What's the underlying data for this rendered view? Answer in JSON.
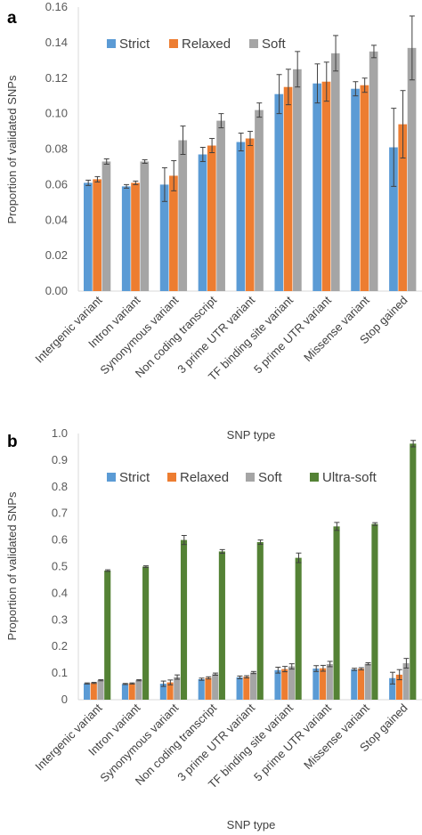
{
  "chart_data": [
    {
      "type": "bar",
      "panel_label": "a",
      "title": "",
      "xlabel": "SNP type",
      "ylabel": "Proportion of validated SNPs",
      "ylim": [
        0,
        0.16
      ],
      "yticks": [
        "0.00",
        "0.02",
        "0.04",
        "0.06",
        "0.08",
        "0.10",
        "0.12",
        "0.14",
        "0.16"
      ],
      "grid": false,
      "legend_position": "top-left",
      "categories": [
        "Intergenic variant",
        "Intron variant",
        "Synonymous variant",
        "Non coding transcript",
        "3 prime UTR variant",
        "TF binding site variant",
        "5 prime UTR variant",
        "Missense variant",
        "Stop gained"
      ],
      "series": [
        {
          "name": "Strict",
          "color": "#5b9bd5",
          "values": [
            0.061,
            0.059,
            0.06,
            0.077,
            0.084,
            0.111,
            0.117,
            0.114,
            0.081
          ],
          "errors": [
            0.0015,
            0.001,
            0.0095,
            0.004,
            0.005,
            0.011,
            0.011,
            0.004,
            0.022
          ]
        },
        {
          "name": "Relaxed",
          "color": "#ed7d31",
          "values": [
            0.063,
            0.061,
            0.065,
            0.082,
            0.086,
            0.115,
            0.118,
            0.116,
            0.094
          ],
          "errors": [
            0.0015,
            0.001,
            0.0085,
            0.004,
            0.004,
            0.01,
            0.011,
            0.004,
            0.019
          ]
        },
        {
          "name": "Soft",
          "color": "#a5a5a5",
          "values": [
            0.073,
            0.073,
            0.085,
            0.096,
            0.102,
            0.125,
            0.134,
            0.135,
            0.137
          ],
          "errors": [
            0.0015,
            0.001,
            0.008,
            0.004,
            0.004,
            0.01,
            0.01,
            0.0035,
            0.018
          ]
        }
      ]
    },
    {
      "type": "bar",
      "panel_label": "b",
      "title": "",
      "xlabel": "SNP type",
      "ylabel": "Proportion of validated SNPs",
      "ylim": [
        0,
        1.0
      ],
      "yticks": [
        "0",
        "0.1",
        "0.2",
        "0.3",
        "0.4",
        "0.5",
        "0.6",
        "0.7",
        "0.8",
        "0.9",
        "1.0"
      ],
      "grid": false,
      "legend_position": "top-left",
      "categories": [
        "Intergenic variant",
        "Intron variant",
        "Synonymous variant",
        "Non coding transcript",
        "3 prime UTR variant",
        "TF binding site variant",
        "5 prime UTR variant",
        "Missense variant",
        "Stop gained"
      ],
      "series": [
        {
          "name": "Strict",
          "color": "#5b9bd5",
          "values": [
            0.061,
            0.059,
            0.06,
            0.077,
            0.084,
            0.111,
            0.117,
            0.114,
            0.081
          ],
          "errors": [
            0.002,
            0.002,
            0.01,
            0.004,
            0.005,
            0.011,
            0.011,
            0.004,
            0.022
          ]
        },
        {
          "name": "Relaxed",
          "color": "#ed7d31",
          "values": [
            0.063,
            0.061,
            0.065,
            0.082,
            0.086,
            0.115,
            0.118,
            0.116,
            0.094
          ],
          "errors": [
            0.002,
            0.002,
            0.009,
            0.004,
            0.004,
            0.01,
            0.011,
            0.004,
            0.019
          ]
        },
        {
          "name": "Soft",
          "color": "#a5a5a5",
          "values": [
            0.073,
            0.073,
            0.085,
            0.096,
            0.102,
            0.125,
            0.134,
            0.135,
            0.137
          ],
          "errors": [
            0.002,
            0.002,
            0.008,
            0.004,
            0.004,
            0.01,
            0.01,
            0.004,
            0.018
          ]
        },
        {
          "name": "Ultra-soft",
          "color": "#548235",
          "values": [
            0.485,
            0.5,
            0.6,
            0.557,
            0.592,
            0.533,
            0.651,
            0.66,
            0.962
          ],
          "errors": [
            0.003,
            0.003,
            0.017,
            0.007,
            0.008,
            0.018,
            0.015,
            0.005,
            0.012
          ]
        }
      ]
    }
  ]
}
